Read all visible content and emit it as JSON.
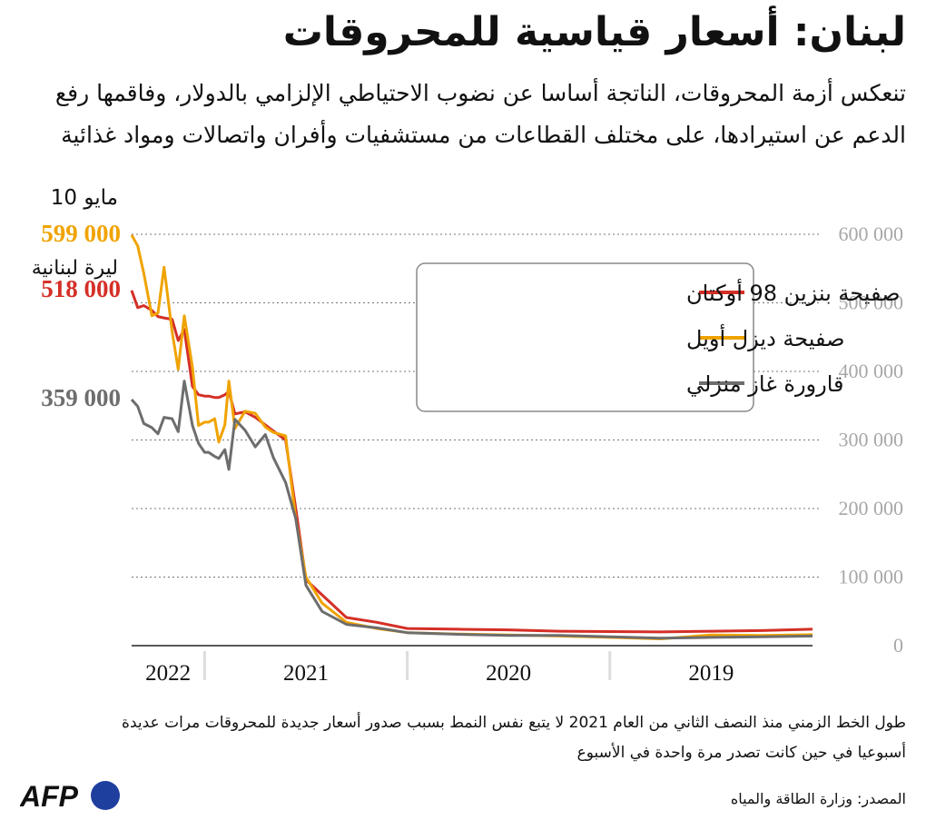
{
  "header": {
    "title": "لبنان: أسعار قياسية للمحروقات",
    "subtitle": "تنعكس أزمة المحروقات، الناتجة أساسا عن نضوب الاحتياطي الإلزامي بالدولار، وفاقمها رفع الدعم عن استيرادها، على مختلف القطاعات من مستشفيات وأفران واتصالات ومواد غذائية"
  },
  "footer": {
    "note": "طول الخط الزمني منذ النصف الثاني من العام 2021 لا يتبع نفس النمط بسبب صدور أسعار جديدة للمحروقات مرات عديدة أسبوعيا في حين كانت تصدر مرة واحدة في الأسبوع",
    "source": "المصدر: وزارة الطاقة والمياه",
    "logo_text": "AFP"
  },
  "chart_data": {
    "type": "line",
    "title": "",
    "xlabel": "",
    "ylabel": "",
    "ylim": [
      0,
      600000
    ],
    "y_ticks": [
      "600 000",
      "500 000",
      "400 000",
      "300 000",
      "200 000",
      "100 000",
      "0"
    ],
    "x_axis_direction": "right-to-left",
    "x_ticks": [
      "2019",
      "2020",
      "2021",
      "2022"
    ],
    "grid": true,
    "legend_position": "upper-middle",
    "end_date_label": "10 مايو",
    "unit_label": "ليرة لبنانية",
    "end_value_labels": [
      {
        "text": "599 000",
        "series": 1
      },
      {
        "text": "518 000",
        "series": 0
      },
      {
        "text": "359 000",
        "series": 2
      }
    ],
    "x": [
      2019.0,
      2019.25,
      2019.5,
      2019.75,
      2020.0,
      2020.25,
      2020.5,
      2020.75,
      2021.0,
      2021.15,
      2021.3,
      2021.42,
      2021.5,
      2021.55,
      2021.6,
      2021.66,
      2021.7,
      2021.75,
      2021.8,
      2021.85,
      2021.88,
      2021.9,
      2021.93,
      2021.95,
      2021.98,
      2022.0,
      2022.03,
      2022.06,
      2022.1,
      2022.13,
      2022.16,
      2022.2,
      2022.23,
      2022.26,
      2022.3,
      2022.33,
      2022.36
    ],
    "series": [
      {
        "name": "صفيحة بنزين 98 أوكتان",
        "color": "#d42f27",
        "values": [
          24000,
          22000,
          21000,
          20000,
          20500,
          21000,
          23000,
          24000,
          25000,
          34000,
          41000,
          74000,
          96000,
          200000,
          300000,
          313000,
          322000,
          333000,
          341000,
          338000,
          371000,
          366000,
          362000,
          362000,
          364000,
          364000,
          366000,
          378000,
          461000,
          445000,
          476000,
          478000,
          480000,
          489000,
          496000,
          493000,
          518000
        ]
      },
      {
        "name": "صفيحة ديزل أويل",
        "color": "#f0a300",
        "values": [
          16000,
          15000,
          15500,
          10000,
          12000,
          14000,
          15500,
          17000,
          19000,
          25000,
          34000,
          62000,
          100000,
          185000,
          306000,
          311000,
          319000,
          339000,
          342000,
          317000,
          386000,
          322000,
          297000,
          331000,
          326000,
          326000,
          321000,
          406000,
          481000,
          403000,
          458000,
          552000,
          485000,
          481000,
          543000,
          583000,
          599000
        ]
      },
      {
        "name": "قارورة غاز منزلي",
        "color": "#6d6d6d",
        "values": [
          14000,
          13000,
          12000,
          11000,
          13000,
          15000,
          15000,
          16500,
          19000,
          26000,
          31000,
          50000,
          88000,
          185000,
          238000,
          274000,
          308000,
          290000,
          314000,
          330000,
          257000,
          286000,
          273000,
          276000,
          282000,
          282000,
          295000,
          321000,
          386000,
          312000,
          331000,
          333000,
          309000,
          318000,
          324000,
          349000,
          359000
        ]
      }
    ]
  }
}
